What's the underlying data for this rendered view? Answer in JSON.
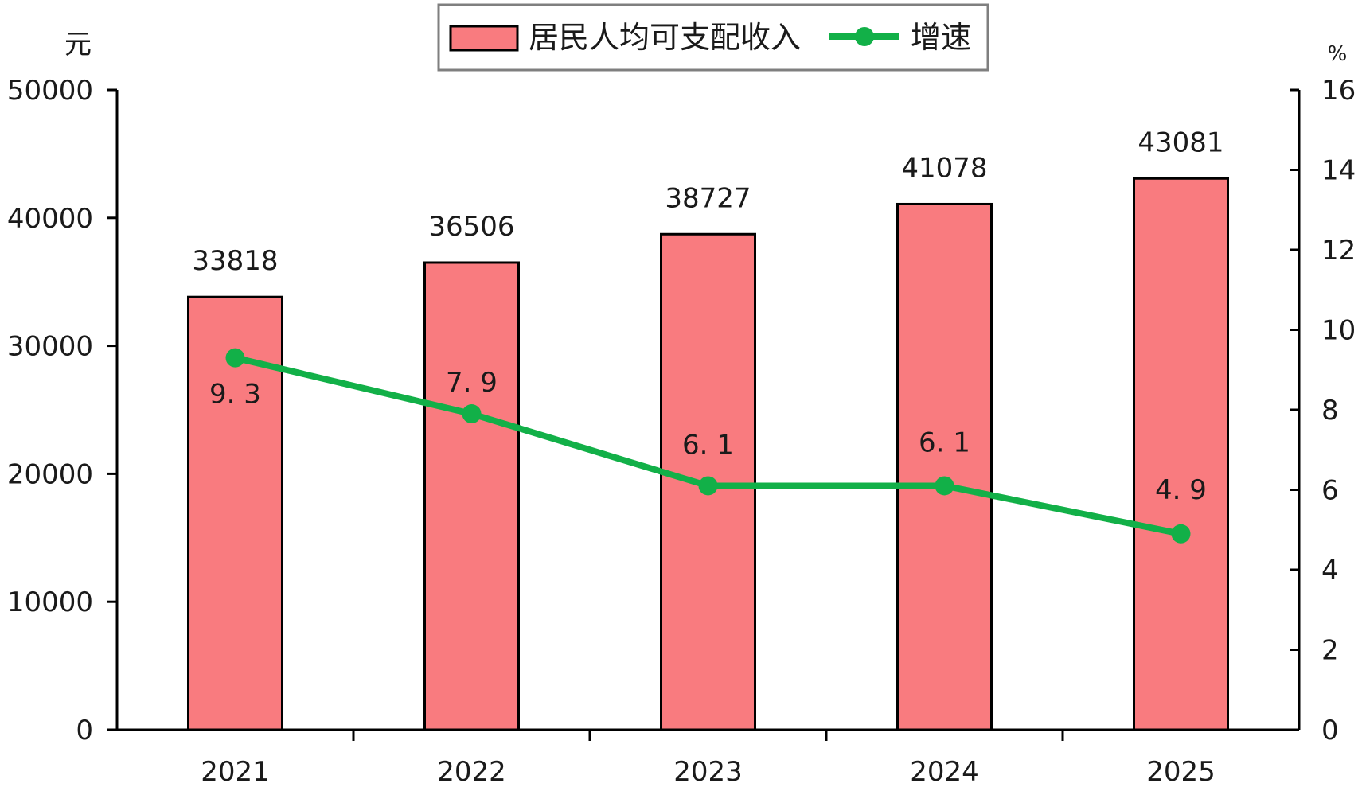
{
  "chart_data": {
    "type": "bar",
    "categories": [
      "2021",
      "2022",
      "2023",
      "2024",
      "2025"
    ],
    "series": [
      {
        "name": "居民人均可支配收入",
        "kind": "bar",
        "axis": "left",
        "values": [
          33818,
          36506,
          38727,
          41078,
          43081
        ],
        "data_labels": [
          "33818",
          "36506",
          "38727",
          "41078",
          "43081"
        ],
        "color": "#F97B7F"
      },
      {
        "name": "增速",
        "kind": "line",
        "axis": "right",
        "values": [
          9.3,
          7.9,
          6.1,
          6.1,
          4.9
        ],
        "data_labels": [
          "9. 3",
          "7. 9",
          "6. 1",
          "6. 1",
          "4. 9"
        ],
        "color": "#12B048"
      }
    ],
    "y_left": {
      "unit": "元",
      "ylim": [
        0,
        50000
      ],
      "ticks": [
        0,
        10000,
        20000,
        30000,
        40000,
        50000
      ]
    },
    "y_right": {
      "unit": "%",
      "ylim": [
        0,
        16
      ],
      "ticks": [
        0,
        2,
        4,
        6,
        8,
        10,
        12,
        14,
        16
      ]
    },
    "legend": {
      "position": "top-center",
      "items": [
        "居民人均可支配收入",
        "增速"
      ]
    },
    "grid": false
  }
}
